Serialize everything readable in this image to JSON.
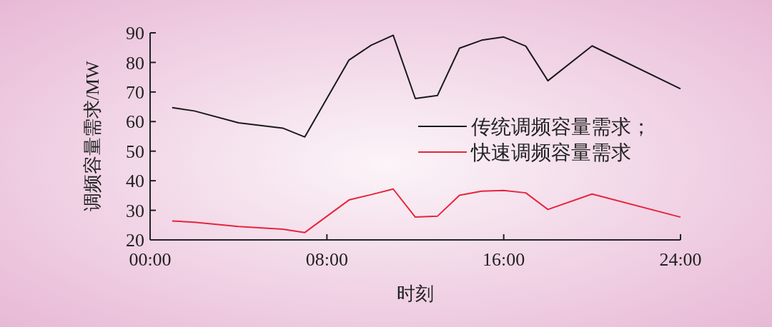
{
  "chart_data": {
    "type": "line",
    "xlabel": "时刻",
    "ylabel": "调频容量需求/MW",
    "xlim": [
      0,
      24
    ],
    "xticks": [
      {
        "value": 0,
        "label": "00:00"
      },
      {
        "value": 8,
        "label": "08:00"
      },
      {
        "value": 16,
        "label": "16:00"
      },
      {
        "value": 24,
        "label": "24:00"
      }
    ],
    "ylim": [
      20,
      90
    ],
    "yticks": [
      20,
      30,
      40,
      50,
      60,
      70,
      80,
      90
    ],
    "x": [
      1,
      2,
      4,
      6,
      7,
      9,
      10,
      11,
      12,
      13,
      14,
      15,
      16,
      17,
      18,
      20,
      24
    ],
    "series": [
      {
        "name": "传统调频容量需求；",
        "color": "#1a1a1a",
        "values": [
          64.7,
          63.6,
          59.6,
          57.8,
          54.8,
          80.8,
          85.8,
          89.2,
          67.8,
          68.8,
          84.8,
          87.5,
          88.6,
          85.5,
          73.8,
          85.6,
          71.1
        ]
      },
      {
        "name": "快速调频容量需求",
        "color": "#e8243c",
        "values": [
          26.4,
          26.0,
          24.5,
          23.6,
          22.5,
          33.5,
          35.3,
          37.2,
          27.7,
          28.0,
          35.1,
          36.5,
          36.7,
          35.9,
          30.3,
          35.5,
          27.7
        ]
      }
    ],
    "grid": false,
    "legend": "right",
    "marker": "none",
    "line_style": "solid"
  }
}
